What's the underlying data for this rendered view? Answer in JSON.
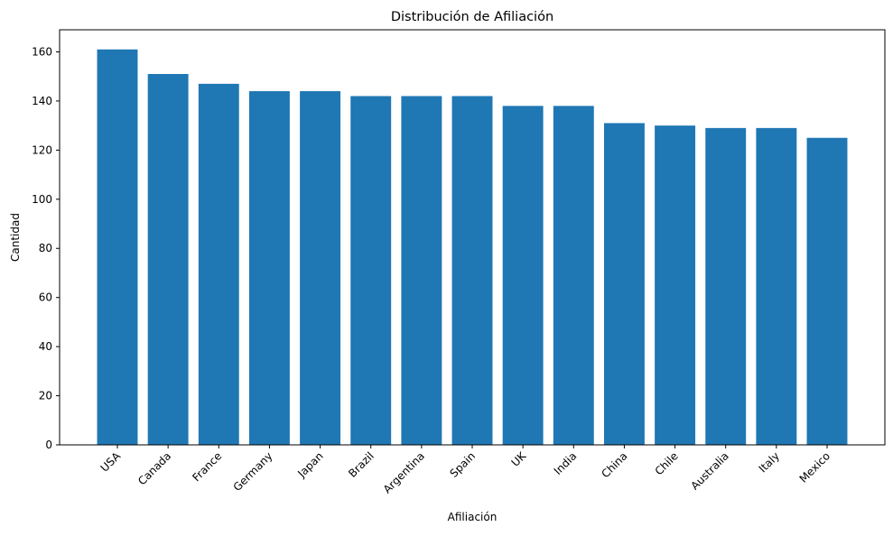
{
  "chart_data": {
    "type": "bar",
    "title": "Distribución de Afiliación",
    "xlabel": "Afiliación",
    "ylabel": "Cantidad",
    "categories": [
      "USA",
      "Canada",
      "France",
      "Germany",
      "Japan",
      "Brazil",
      "Argentina",
      "Spain",
      "UK",
      "India",
      "China",
      "Chile",
      "Australia",
      "Italy",
      "Mexico"
    ],
    "values": [
      161,
      151,
      147,
      144,
      144,
      142,
      142,
      142,
      138,
      138,
      131,
      130,
      129,
      129,
      125
    ],
    "ylim": [
      0,
      169
    ],
    "yticks": [
      0,
      20,
      40,
      60,
      80,
      100,
      120,
      140,
      160
    ],
    "grid": false,
    "legend": "none",
    "colors": {
      "bar": "#1f77b4",
      "axis": "#000000",
      "background": "#ffffff"
    }
  }
}
